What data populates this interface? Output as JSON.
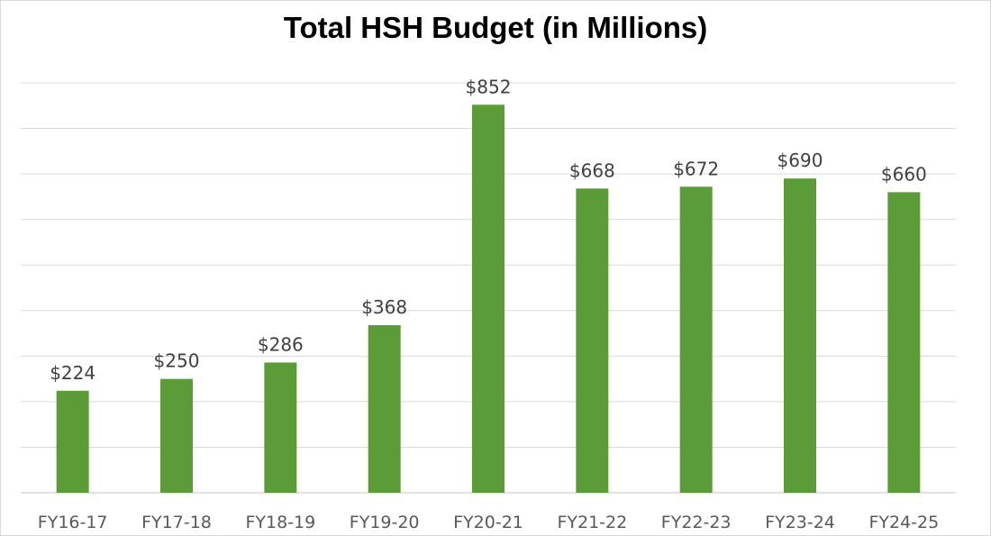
{
  "chart_data": {
    "type": "bar",
    "title": "Total HSH Budget (in Millions)",
    "categories": [
      "FY16-17",
      "FY17-18",
      "FY18-19",
      "FY19-20",
      "FY20-21",
      "FY21-22",
      "FY22-23",
      "FY23-24",
      "FY24-25"
    ],
    "values": [
      224,
      250,
      286,
      368,
      852,
      668,
      672,
      690,
      660
    ],
    "data_labels": [
      "$224",
      "$250",
      "$286",
      "$368",
      "$852",
      "$668",
      "$672",
      "$690",
      "$660"
    ],
    "xlabel": "",
    "ylabel": "",
    "ylim": [
      0,
      900
    ],
    "y_gridline_step": 100,
    "grid": true,
    "legend": "none",
    "bar_color": "#5b9c38",
    "gridline_color": "#d9d9d9"
  }
}
